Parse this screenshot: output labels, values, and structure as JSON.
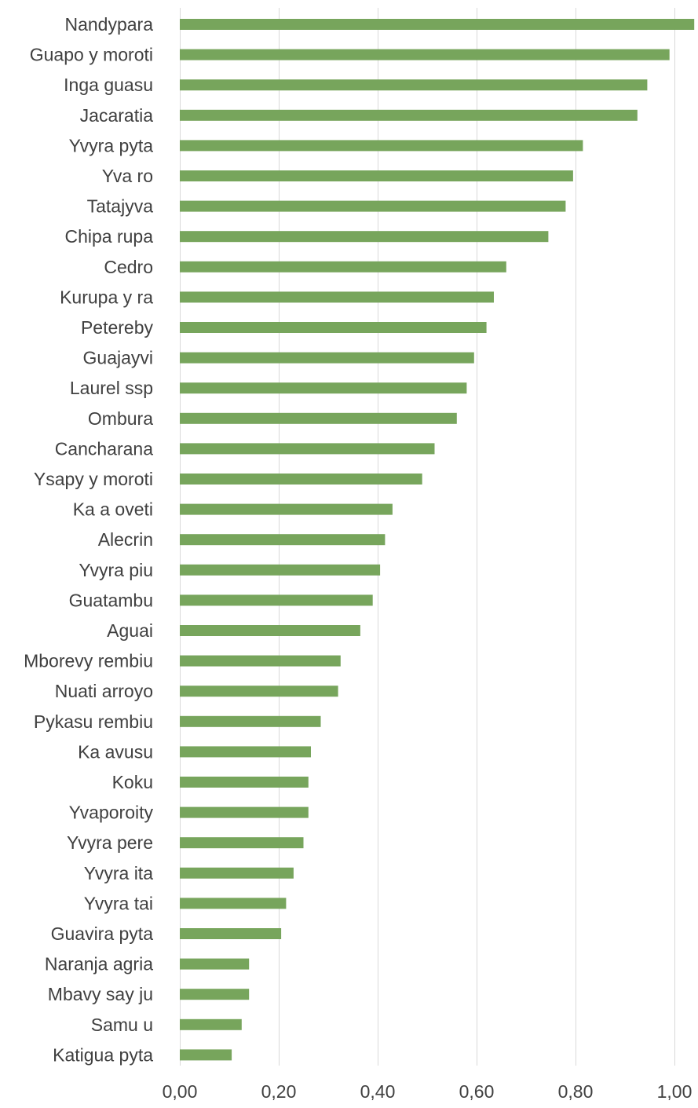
{
  "chart_data": {
    "type": "bar",
    "orientation": "horizontal",
    "title": "",
    "xlabel": "",
    "ylabel": "",
    "categories": [
      "Nandypara",
      "Guapo y moroti",
      "Inga guasu",
      "Jacaratia",
      "Yvyra pyta",
      "Yva ro",
      "Tatajyva",
      "Chipa rupa",
      "Cedro",
      "Kurupa y ra",
      "Petereby",
      "Guajayvi",
      "Laurel ssp",
      "Ombura",
      "Cancharana",
      "Ysapy y moroti",
      "Ka a oveti",
      "Alecrin",
      "Yvyra piu",
      "Guatambu",
      "Aguai",
      "Mborevy rembiu",
      "Nuati arroyo",
      "Pykasu rembiu",
      "Ka avusu",
      "Koku",
      "Yvaporoity",
      "Yvyra pere",
      "Yvyra ita",
      "Yvyra tai",
      "Guavira pyta",
      "Naranja agria",
      "Mbavy say ju",
      "Samu u",
      "Katigua pyta"
    ],
    "values": [
      1.04,
      0.99,
      0.945,
      0.925,
      0.815,
      0.795,
      0.78,
      0.745,
      0.66,
      0.635,
      0.62,
      0.595,
      0.58,
      0.56,
      0.515,
      0.49,
      0.43,
      0.415,
      0.405,
      0.39,
      0.365,
      0.325,
      0.32,
      0.285,
      0.265,
      0.26,
      0.26,
      0.25,
      0.23,
      0.215,
      0.205,
      0.14,
      0.14,
      0.125,
      0.105
    ],
    "xlim": [
      0,
      1.04
    ],
    "ticks": [
      0,
      0.2,
      0.4,
      0.6,
      0.8,
      1.0
    ],
    "tick_labels": [
      "0,00",
      "0,20",
      "0,40",
      "0,60",
      "0,80",
      "1,00"
    ],
    "grid": true,
    "legend": "none",
    "bar_color": "#77a55c",
    "gridline_color": "#d9d9d9",
    "text_color": "#404040"
  }
}
